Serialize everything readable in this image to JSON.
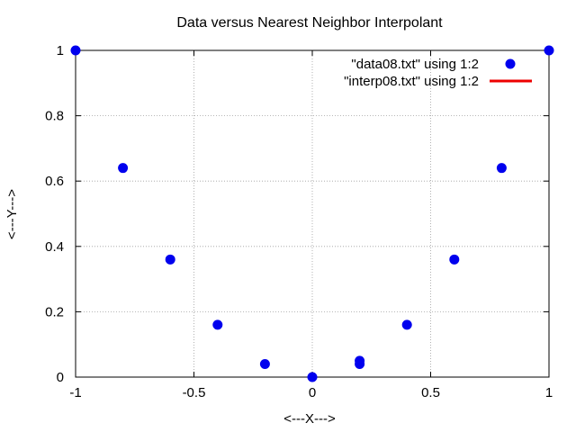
{
  "chart_data": {
    "type": "scatter",
    "title": "Data versus Nearest Neighbor Interpolant",
    "xlabel": "<---X--->",
    "ylabel": "<---Y--->",
    "xlim": [
      -1,
      1
    ],
    "ylim": [
      0,
      1
    ],
    "xticks": [
      -1,
      -0.5,
      0,
      0.5,
      1
    ],
    "xtick_labels": [
      "-1",
      "-0.5",
      "0",
      "0.5",
      "1"
    ],
    "yticks": [
      0,
      0.2,
      0.4,
      0.6,
      0.8,
      1
    ],
    "ytick_labels": [
      "0",
      "0.2",
      "0.4",
      "0.6",
      "0.8",
      "1"
    ],
    "grid": true,
    "legend_position": "top-right",
    "series": [
      {
        "name": "\"data08.txt\" using 1:2",
        "style": "points",
        "color": "#0000ee",
        "x": [
          -1,
          -0.8,
          -0.6,
          -0.4,
          -0.2,
          0,
          0.2,
          0.2,
          0.4,
          0.6,
          0.8,
          1
        ],
        "y": [
          1,
          0.64,
          0.36,
          0.16,
          0.04,
          0,
          0.04,
          0.05,
          0.16,
          0.36,
          0.64,
          1
        ]
      },
      {
        "name": "\"interp08.txt\" using 1:2",
        "style": "line",
        "color": "#ee0000",
        "x": [],
        "y": []
      }
    ]
  }
}
